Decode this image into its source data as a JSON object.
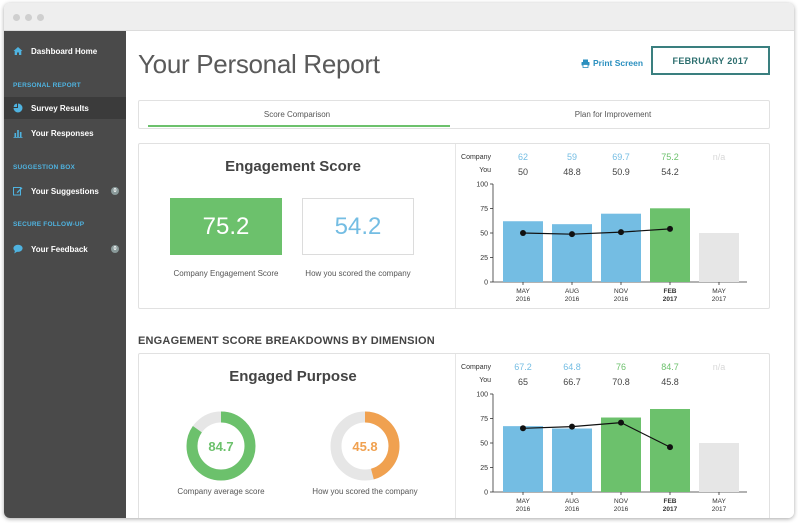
{
  "sidebar": {
    "items": [
      {
        "label": "Dashboard Home",
        "icon": "home-icon"
      },
      {
        "label": "Survey Results",
        "icon": "pie-chart-icon",
        "active": true
      },
      {
        "label": "Your Responses",
        "icon": "bar-chart-icon"
      },
      {
        "label": "Your Suggestions",
        "icon": "edit-icon",
        "badge": "0"
      },
      {
        "label": "Your Feedback",
        "icon": "chat-bubble-icon",
        "badge": "0"
      }
    ],
    "sections": [
      "PERSONAL REPORT",
      "SUGGESTION BOX",
      "SECURE FOLLOW-UP"
    ]
  },
  "header": {
    "title": "Your Personal Report",
    "print_label": "Print Screen",
    "month_label": "FEBRUARY 2017"
  },
  "tabs": [
    {
      "label": "Score Comparison",
      "active": true
    },
    {
      "label": "Plan for Improvement",
      "active": false
    }
  ],
  "engagement": {
    "title": "Engagement Score",
    "company_score": "75.2",
    "your_score": "54.2",
    "company_caption": "Company Engagement Score",
    "your_caption": "How you scored the company"
  },
  "breakdown_heading": "ENGAGEMENT SCORE BREAKDOWNS BY DIMENSION",
  "purpose": {
    "title": "Engaged Purpose",
    "company_score": "84.7",
    "your_score": "45.8",
    "company_value": 84.7,
    "your_value": 45.8,
    "company_caption": "Company average score",
    "your_caption": "How you scored the company"
  },
  "colors": {
    "green": "#6cc16c",
    "blue": "#74bde3",
    "gray": "#e6e6e6",
    "orange": "#f0a150",
    "teal": "#3a7f7f"
  },
  "chart_data": [
    {
      "type": "bar",
      "categories": [
        [
          "MAY",
          "2016"
        ],
        [
          "AUG",
          "2016"
        ],
        [
          "NOV",
          "2016"
        ],
        [
          "FEB",
          "2017"
        ],
        [
          "MAY",
          "2017"
        ]
      ],
      "row_labels": [
        "Company",
        "You"
      ],
      "company_labels": [
        "62",
        "59",
        "69.7",
        "75.2",
        "n/a"
      ],
      "you_labels": [
        "50",
        "48.8",
        "50.9",
        "54.2",
        ""
      ],
      "series": [
        {
          "name": "Company",
          "values": [
            62,
            59,
            69.7,
            75.2,
            50
          ]
        },
        {
          "name": "You",
          "values": [
            50,
            48.8,
            50.9,
            54.2,
            null
          ]
        }
      ],
      "bar_colors": [
        "#74bde3",
        "#74bde3",
        "#74bde3",
        "#6cc16c",
        "#e6e6e6"
      ],
      "highlight_index": 3,
      "yticks": [
        0,
        25,
        50,
        75,
        100
      ],
      "ylim": [
        0,
        100
      ]
    },
    {
      "type": "bar",
      "categories": [
        [
          "MAY",
          "2016"
        ],
        [
          "AUG",
          "2016"
        ],
        [
          "NOV",
          "2016"
        ],
        [
          "FEB",
          "2017"
        ],
        [
          "MAY",
          "2017"
        ]
      ],
      "row_labels": [
        "Company",
        "You"
      ],
      "company_labels": [
        "67.2",
        "64.8",
        "76",
        "84.7",
        "n/a"
      ],
      "you_labels": [
        "65",
        "66.7",
        "70.8",
        "45.8",
        ""
      ],
      "series": [
        {
          "name": "Company",
          "values": [
            67.2,
            64.8,
            76,
            84.7,
            50
          ]
        },
        {
          "name": "You",
          "values": [
            65,
            66.7,
            70.8,
            45.8,
            null
          ]
        }
      ],
      "bar_colors": [
        "#74bde3",
        "#74bde3",
        "#6cc16c",
        "#6cc16c",
        "#e6e6e6"
      ],
      "highlight_index": 3,
      "yticks": [
        0,
        25,
        50,
        75,
        100
      ],
      "ylim": [
        0,
        100
      ]
    }
  ]
}
